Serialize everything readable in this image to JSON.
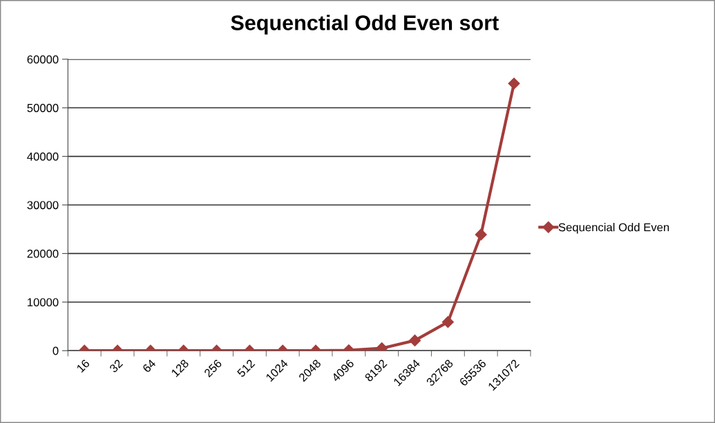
{
  "chart_data": {
    "type": "line",
    "title": "Sequenctial Odd Even sort",
    "categories": [
      "16",
      "32",
      "64",
      "128",
      "256",
      "512",
      "1024",
      "2048",
      "4096",
      "8192",
      "16384",
      "32768",
      "65536",
      "131072"
    ],
    "series": [
      {
        "name": "Sequencial Odd Even",
        "color": "#a33d3b",
        "values": [
          0,
          0,
          0,
          0,
          0,
          0,
          0,
          0,
          100,
          500,
          2100,
          5900,
          23900,
          55000
        ]
      }
    ],
    "ylim": [
      0,
      60000
    ],
    "yticks": [
      0,
      10000,
      20000,
      30000,
      40000,
      50000,
      60000
    ],
    "grid": "y",
    "legend": "right",
    "marker": "diamond",
    "line_style": "solid"
  }
}
